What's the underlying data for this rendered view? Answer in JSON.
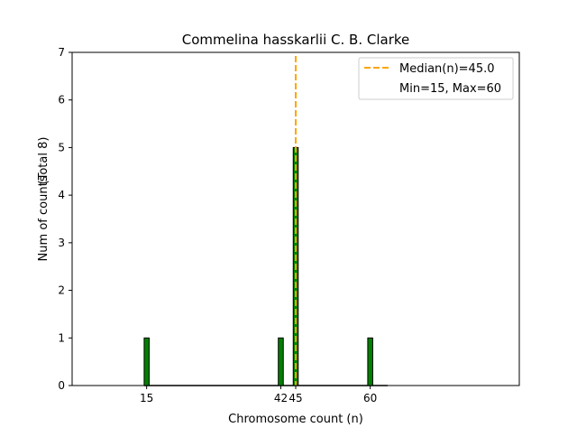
{
  "chart_data": {
    "type": "bar",
    "title": "Commelina hasskarlii C. B. Clarke",
    "xlabel": "Chromosome count (n)",
    "ylabel": "Num of counts",
    "ylabel_total": "(Total 8)",
    "xlim": [
      0,
      90
    ],
    "ylim": [
      0,
      7
    ],
    "x_ticks": [
      15,
      42,
      45,
      60
    ],
    "y_ticks": [
      0,
      1,
      2,
      3,
      4,
      5,
      6,
      7
    ],
    "bars": [
      {
        "x": 15,
        "value": 1
      },
      {
        "x": 42,
        "value": 1
      },
      {
        "x": 45,
        "value": 5
      },
      {
        "x": 60,
        "value": 1
      }
    ],
    "bar_width": 1,
    "baseline_range": [
      14.5,
      63.5
    ],
    "median": 45.0,
    "legend": {
      "placement": "top-right",
      "entries": [
        "Median(n)=45.0",
        "Min=15, Max=60"
      ]
    },
    "colors": {
      "bar": "#008000",
      "edge": "#000000",
      "median": "#FFA500"
    }
  }
}
